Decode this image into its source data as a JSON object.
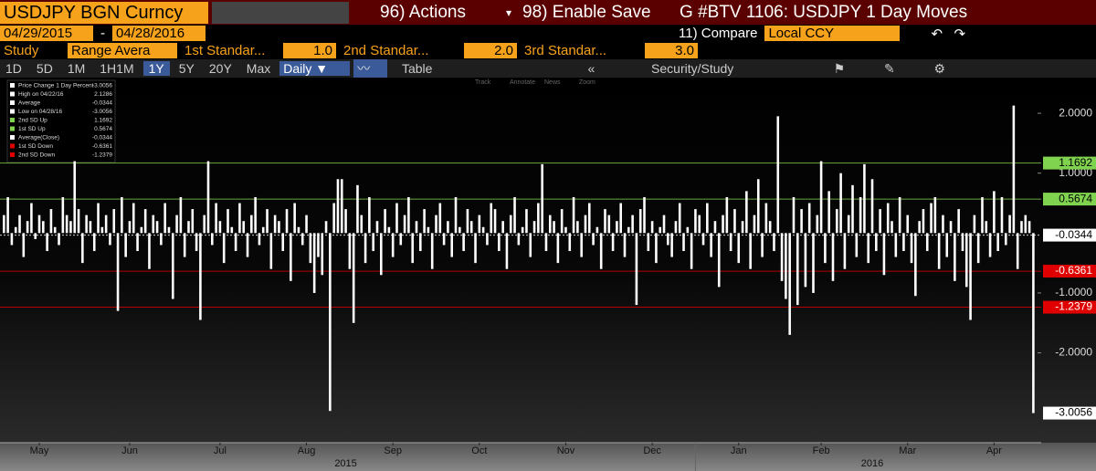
{
  "ui": {
    "security": "USDJPY BGN Curncy",
    "actions": "96) Actions",
    "enable_save": "98) Enable Save",
    "chart_id": "G #BTV 1106: USDJPY 1 Day Moves",
    "start_date": "04/29/2015",
    "date_sep": "-",
    "end_date": "04/28/2016",
    "compare": "11) Compare",
    "compare_value": "Local CCY",
    "study": "Study",
    "study_value": "Range Avera",
    "sd1": "1st Standar...",
    "sd1_value": "1.0",
    "sd2": "2nd Standar...",
    "sd2_value": "2.0",
    "sd3": "3rd Standar...",
    "sd3_value": "3.0",
    "ranges": [
      "1D",
      "5D",
      "1M",
      "1H1M",
      "1Y",
      "5Y",
      "20Y",
      "Max"
    ],
    "period": "Daily",
    "table": "Table",
    "collapse": "«",
    "security_study": "Security/Study",
    "tools": [
      "Track",
      "Annotate",
      "News",
      "Zoom"
    ]
  },
  "chart_data": {
    "type": "bar",
    "color": "#ffffff",
    "legend": [
      {
        "label": "Price Change 1 Day Percent",
        "value": -3.0056,
        "color": "#ffffff"
      },
      {
        "label": "High on 04/22/16",
        "value": 2.1286,
        "color": "#ffffff"
      },
      {
        "label": "Average",
        "value": -0.0344,
        "color": "#ffffff"
      },
      {
        "label": "Low on 04/28/16",
        "value": -3.0056,
        "color": "#ffffff"
      },
      {
        "label": "2nd SD Up",
        "value": 1.1692,
        "color": "#7fd34e"
      },
      {
        "label": "1st SD Up",
        "value": 0.5674,
        "color": "#7fd34e"
      },
      {
        "label": "Average(Close)",
        "value": -0.0344,
        "color": "#ffffff"
      },
      {
        "label": "1st SD Down",
        "value": -0.6361,
        "color": "#e00000"
      },
      {
        "label": "2nd SD Down",
        "value": -1.2379,
        "color": "#e00000"
      }
    ],
    "lines": [
      {
        "name": "2nd SD Up",
        "value": 1.1692,
        "color": "#7fd34e"
      },
      {
        "name": "1st SD Up",
        "value": 0.5674,
        "color": "#7fd34e"
      },
      {
        "name": "Average(Close)",
        "value": -0.0344,
        "color": "#ffffff"
      },
      {
        "name": "1st SD Down",
        "value": -0.6361,
        "color": "#e00000"
      },
      {
        "name": "2nd SD Down",
        "value": -1.2379,
        "color": "#e00000"
      }
    ],
    "values": [
      0.3,
      0.6,
      -0.2,
      0.1,
      0.3,
      -0.4,
      0.2,
      0.5,
      -0.1,
      0.3,
      0.2,
      -0.3,
      0.4,
      0.1,
      -0.2,
      0.6,
      0.3,
      0.2,
      1.2,
      0.4,
      -0.5,
      0.3,
      0.2,
      -0.3,
      0.5,
      0.1,
      0.3,
      -0.2,
      0.4,
      -1.3,
      0.6,
      -0.4,
      0.2,
      0.5,
      -0.3,
      0.1,
      0.4,
      -0.6,
      0.3,
      0.2,
      -0.2,
      0.5,
      0.1,
      -1.1,
      0.3,
      0.6,
      -0.4,
      0.2,
      0.4,
      -0.3,
      -1.45,
      0.3,
      1.2,
      -0.2,
      0.5,
      0.2,
      -0.5,
      0.4,
      0.1,
      -0.3,
      0.5,
      0.2,
      -0.4,
      0.3,
      0.6,
      -0.2,
      0.1,
      0.4,
      -0.6,
      0.3,
      0.2,
      -0.3,
      0.4,
      -0.8,
      0.5,
      0.1,
      -0.2,
      0.3,
      -0.5,
      -1.0,
      -0.4,
      -0.7,
      0.2,
      -2.97,
      0.5,
      0.9,
      0.9,
      0.4,
      -0.6,
      -1.5,
      0.8,
      0.3,
      -0.5,
      0.6,
      -0.3,
      0.2,
      -0.7,
      0.4,
      0.1,
      -0.4,
      0.5,
      -0.2,
      0.3,
      0.6,
      -0.5,
      0.2,
      -0.3,
      0.4,
      0.1,
      -0.6,
      0.3,
      0.5,
      -0.2,
      0.2,
      -0.4,
      0.6,
      0.1,
      -0.3,
      0.4,
      0.2,
      -0.5,
      0.3,
      0.1,
      -0.2,
      0.5,
      0.4,
      -0.3,
      0.2,
      -0.6,
      0.3,
      0.6,
      -0.2,
      0.1,
      0.4,
      -0.4,
      0.2,
      0.5,
      1.15,
      -0.3,
      0.3,
      0.2,
      -0.5,
      0.4,
      0.1,
      -0.3,
      0.6,
      0.2,
      -0.4,
      0.3,
      0.5,
      -0.2,
      0.1,
      -0.6,
      0.4,
      0.3,
      -0.3,
      0.2,
      0.5,
      -0.4,
      0.1,
      0.3,
      -1.2,
      0.4,
      0.6,
      -0.3,
      0.2,
      -0.5,
      0.1,
      0.3,
      -0.2,
      -0.4,
      0.2,
      0.5,
      -0.3,
      0.1,
      -0.6,
      0.4,
      0.3,
      -0.2,
      0.5,
      -0.4,
      0.2,
      -0.9,
      0.3,
      0.6,
      -0.3,
      0.4,
      -0.5,
      0.2,
      0.7,
      -0.6,
      0.3,
      0.9,
      -0.4,
      0.5,
      0.2,
      -0.3,
      1.95,
      -0.8,
      -1.1,
      -1.7,
      0.6,
      -1.2,
      0.4,
      -0.9,
      0.5,
      -1.0,
      0.3,
      1.2,
      -0.5,
      0.7,
      -0.8,
      0.4,
      1.0,
      -0.6,
      0.3,
      0.8,
      -0.4,
      0.6,
      1.15,
      -0.5,
      0.9,
      -0.3,
      0.4,
      -0.7,
      0.5,
      0.2,
      -0.4,
      0.6,
      -0.3,
      0.3,
      -0.5,
      -1.05,
      0.2,
      0.4,
      -0.3,
      0.5,
      0.6,
      -0.6,
      0.3,
      -0.4,
      0.2,
      -0.8,
      0.4,
      -0.3,
      -0.9,
      -1.45,
      0.3,
      -0.5,
      0.6,
      0.2,
      -0.4,
      0.7,
      -0.3,
      0.6,
      -0.2,
      0.3,
      2.1286,
      -0.6,
      0.2,
      0.3,
      0.2,
      -3.0056
    ],
    "xlim": [
      -1,
      264
    ],
    "ylim": [
      -3.5,
      2.55
    ],
    "yticks": [
      {
        "value": 2,
        "label": "2.0000"
      },
      {
        "value": 1,
        "label": "1.0000"
      },
      {
        "value": -1,
        "label": "-1.0000"
      },
      {
        "value": -2,
        "label": "-2.0000"
      }
    ],
    "xticks": [
      {
        "value": 9,
        "label": "May"
      },
      {
        "value": 32,
        "label": "Jun"
      },
      {
        "value": 55,
        "label": "Jul"
      },
      {
        "value": 77,
        "label": "Aug"
      },
      {
        "value": 99,
        "label": "Sep"
      },
      {
        "value": 121,
        "label": "Oct"
      },
      {
        "value": 143,
        "label": "Nov"
      },
      {
        "value": 165,
        "label": "Dec"
      },
      {
        "value": 187,
        "label": "Jan"
      },
      {
        "value": 208,
        "label": "Feb"
      },
      {
        "value": 230,
        "label": "Mar"
      },
      {
        "value": 252,
        "label": "Apr"
      }
    ],
    "years": [
      {
        "value": 87,
        "label": "2015"
      },
      {
        "value": 221,
        "label": "2016"
      }
    ]
  }
}
